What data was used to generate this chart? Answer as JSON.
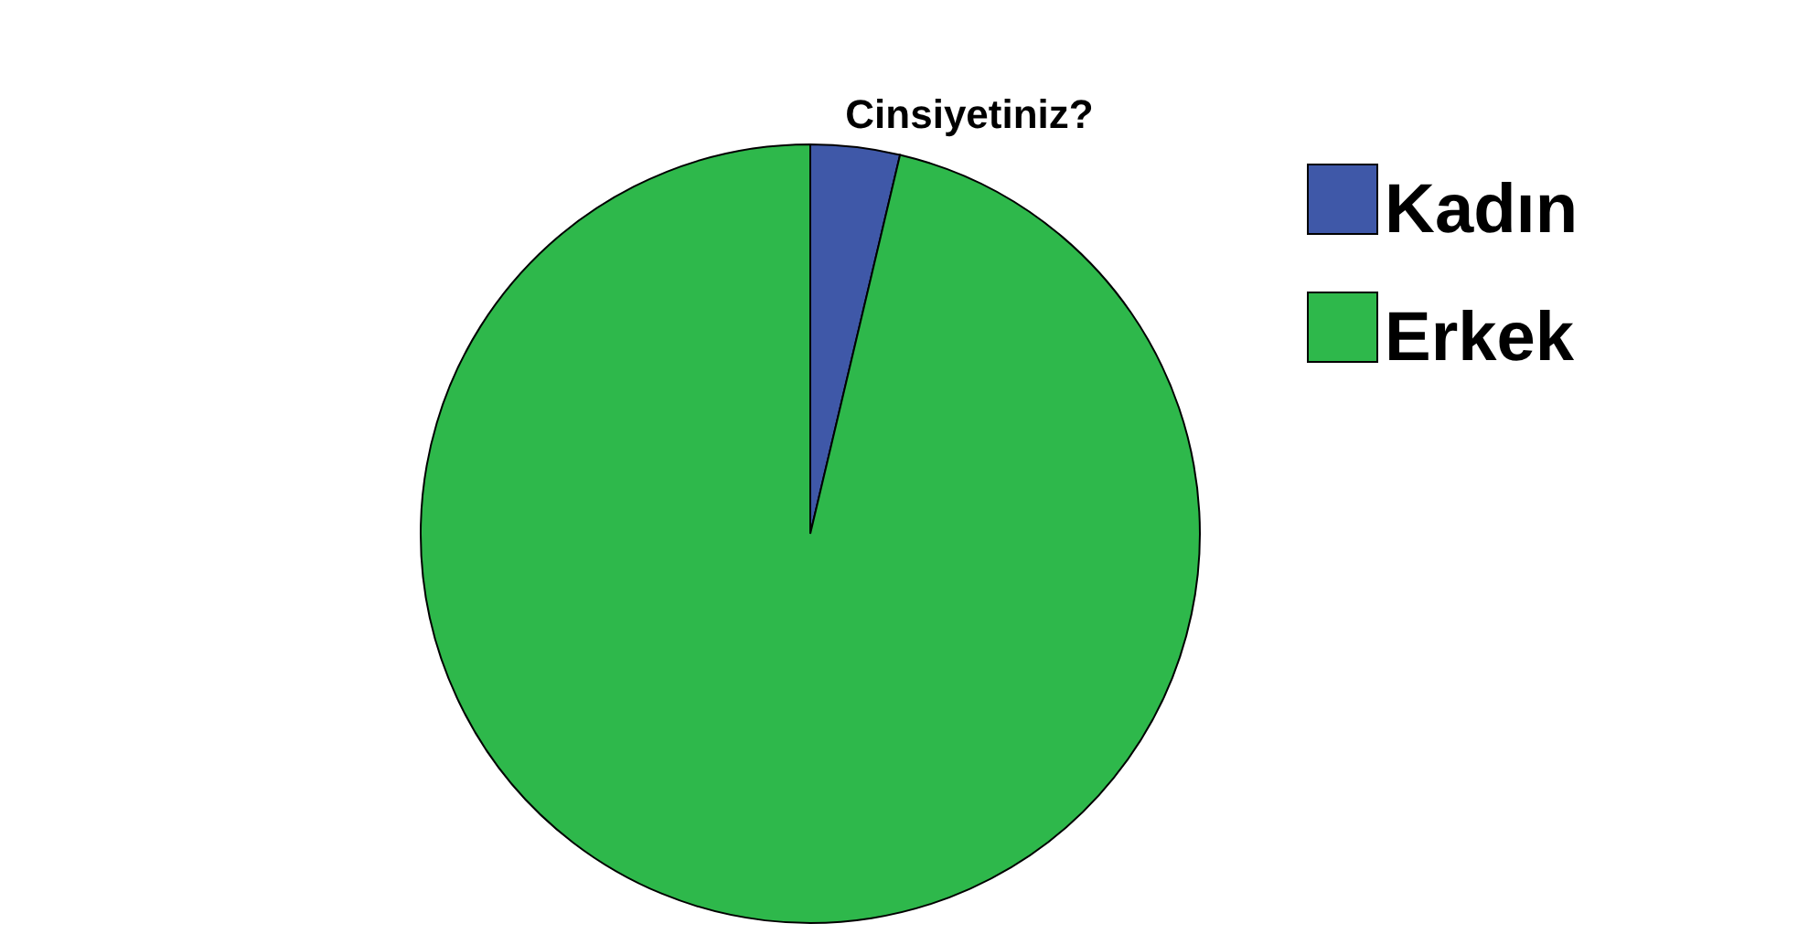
{
  "chart_data": {
    "type": "pie",
    "title": "Cinsiyetiniz?",
    "categories": [
      "Kadın",
      "Erkek"
    ],
    "values": [
      3.7,
      96.3
    ],
    "colors": [
      "#3f58a8",
      "#2eb84b"
    ],
    "legend": "top right"
  }
}
